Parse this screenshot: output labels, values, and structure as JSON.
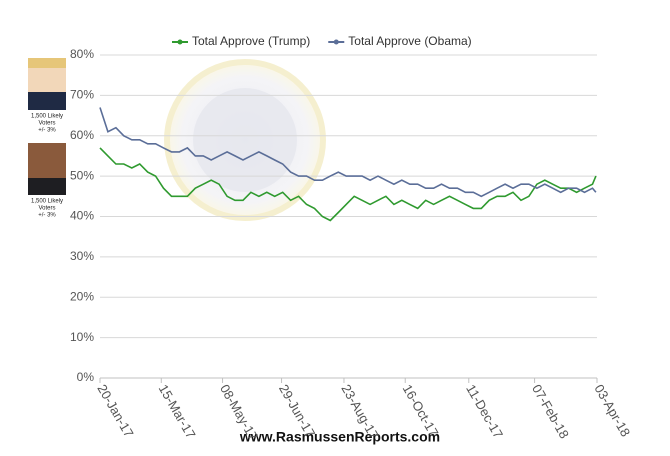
{
  "chart_data": {
    "type": "line",
    "series": [
      {
        "name": "Total Approve (Trump)",
        "color": "#2f9a2f",
        "values": [
          57,
          55,
          53,
          53,
          52,
          53,
          51,
          50,
          47,
          45,
          45,
          45,
          47,
          48,
          49,
          48,
          45,
          44,
          44,
          46,
          45,
          46,
          45,
          46,
          44,
          45,
          43,
          42,
          40,
          39,
          41,
          43,
          45,
          44,
          43,
          44,
          45,
          43,
          44,
          43,
          42,
          44,
          43,
          44,
          45,
          44,
          43,
          42,
          42,
          44,
          45,
          45,
          46,
          44,
          45,
          48,
          49,
          48,
          47,
          47,
          46,
          47,
          48,
          50
        ]
      },
      {
        "name": "Total Approve (Obama)",
        "color": "#5b6e98",
        "values": [
          67,
          61,
          62,
          60,
          59,
          59,
          58,
          58,
          57,
          56,
          56,
          57,
          55,
          55,
          54,
          55,
          56,
          55,
          54,
          55,
          56,
          55,
          54,
          53,
          51,
          50,
          50,
          49,
          49,
          50,
          51,
          50,
          50,
          50,
          49,
          50,
          49,
          48,
          49,
          48,
          48,
          47,
          47,
          48,
          47,
          47,
          46,
          46,
          45,
          46,
          47,
          48,
          47,
          48,
          48,
          47,
          48,
          47,
          46,
          47,
          47,
          46,
          47,
          46
        ]
      }
    ],
    "x": [
      "20-Jan-17",
      "27-Jan-17",
      "03-Feb-17",
      "10-Feb-17",
      "17-Feb-17",
      "24-Feb-17",
      "03-Mar-17",
      "10-Mar-17",
      "17-Mar-17",
      "24-Mar-17",
      "31-Mar-17",
      "07-Apr-17",
      "14-Apr-17",
      "21-Apr-17",
      "28-Apr-17",
      "05-May-17",
      "12-May-17",
      "19-May-17",
      "26-May-17",
      "02-Jun-17",
      "09-Jun-17",
      "16-Jun-17",
      "23-Jun-17",
      "30-Jun-17",
      "07-Jul-17",
      "14-Jul-17",
      "21-Jul-17",
      "28-Jul-17",
      "04-Aug-17",
      "11-Aug-17",
      "18-Aug-17",
      "25-Aug-17",
      "01-Sep-17",
      "08-Sep-17",
      "15-Sep-17",
      "22-Sep-17",
      "29-Sep-17",
      "06-Oct-17",
      "13-Oct-17",
      "20-Oct-17",
      "27-Oct-17",
      "03-Nov-17",
      "10-Nov-17",
      "17-Nov-17",
      "24-Nov-17",
      "01-Dec-17",
      "08-Dec-17",
      "15-Dec-17",
      "22-Dec-17",
      "29-Dec-17",
      "05-Jan-18",
      "12-Jan-18",
      "19-Jan-18",
      "26-Jan-18",
      "02-Feb-18",
      "09-Feb-18",
      "16-Feb-18",
      "23-Feb-18",
      "02-Mar-18",
      "09-Mar-18",
      "16-Mar-18",
      "23-Mar-18",
      "30-Mar-18",
      "02-Apr-18"
    ],
    "xlim": [
      "20-Jan-17",
      "03-Apr-18"
    ],
    "xticks": [
      "20-Jan-17",
      "15-Mar-17",
      "08-May-17",
      "29-Jun-17",
      "23-Aug-17",
      "16-Oct-17",
      "11-Dec-17",
      "07-Feb-18",
      "03-Apr-18"
    ],
    "ylim": [
      0,
      80
    ],
    "yticks": [
      {
        "value": 0,
        "label": "0%"
      },
      {
        "value": 10,
        "label": "10%"
      },
      {
        "value": 20,
        "label": "20%"
      },
      {
        "value": 30,
        "label": "30%"
      },
      {
        "value": 40,
        "label": "40%"
      },
      {
        "value": 50,
        "label": "50%"
      },
      {
        "value": 60,
        "label": "60%"
      },
      {
        "value": 70,
        "label": "70%"
      },
      {
        "value": 80,
        "label": "80%"
      }
    ],
    "grid": true,
    "legend": "top",
    "annotations": [
      [
        "1,500 Likely",
        "Voters",
        "+/- 3%"
      ],
      [
        "1,500 Likely",
        "Voters",
        "+/- 3%"
      ]
    ],
    "source": "www.RasmussenReports.com"
  }
}
